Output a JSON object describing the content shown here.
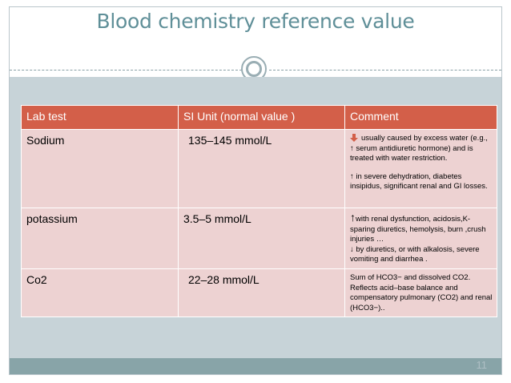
{
  "slide": {
    "title": "Blood chemistry reference value",
    "page_number": "11"
  },
  "table": {
    "headers": [
      "Lab test",
      "SI Unit (normal value )",
      "Comment"
    ],
    "rows": [
      {
        "test": "Sodium",
        "value": "135–145  mmol/L",
        "comment_lines": [
          "usually caused by excess water (e.g., ↑ serum antidiuretic hormone) and is treated with water restriction.",
          "↑ in severe dehydration, diabetes insipidus, significant renal and GI  losses."
        ]
      },
      {
        "test": "potassium",
        "value": "3.5–5 mmol/L",
        "comment_arrow": "↑",
        "comment_lines": [
          "with renal dysfunction, acidosis,K-sparing diuretics, hemolysis, burn ,crush injuries …",
          "↓ by diuretics, or with alkalosis, severe vomiting and diarrhea ."
        ]
      },
      {
        "test": "Co2",
        "value": "22–28  mmol/L",
        "comment_lines": [
          "Sum of HCO3− and dissolved CO2. Reflects acid–base balance and compensatory pulmonary (CO2) and renal (HCO3−).."
        ]
      }
    ]
  },
  "colors": {
    "title": "#5f8f98",
    "header_bg": "#d35f49",
    "cell_bg": "#edd2d2",
    "panel_bg": "#c7d3d8",
    "bottom_bar": "#88a4a8",
    "down_arrow": "#d35f49"
  }
}
